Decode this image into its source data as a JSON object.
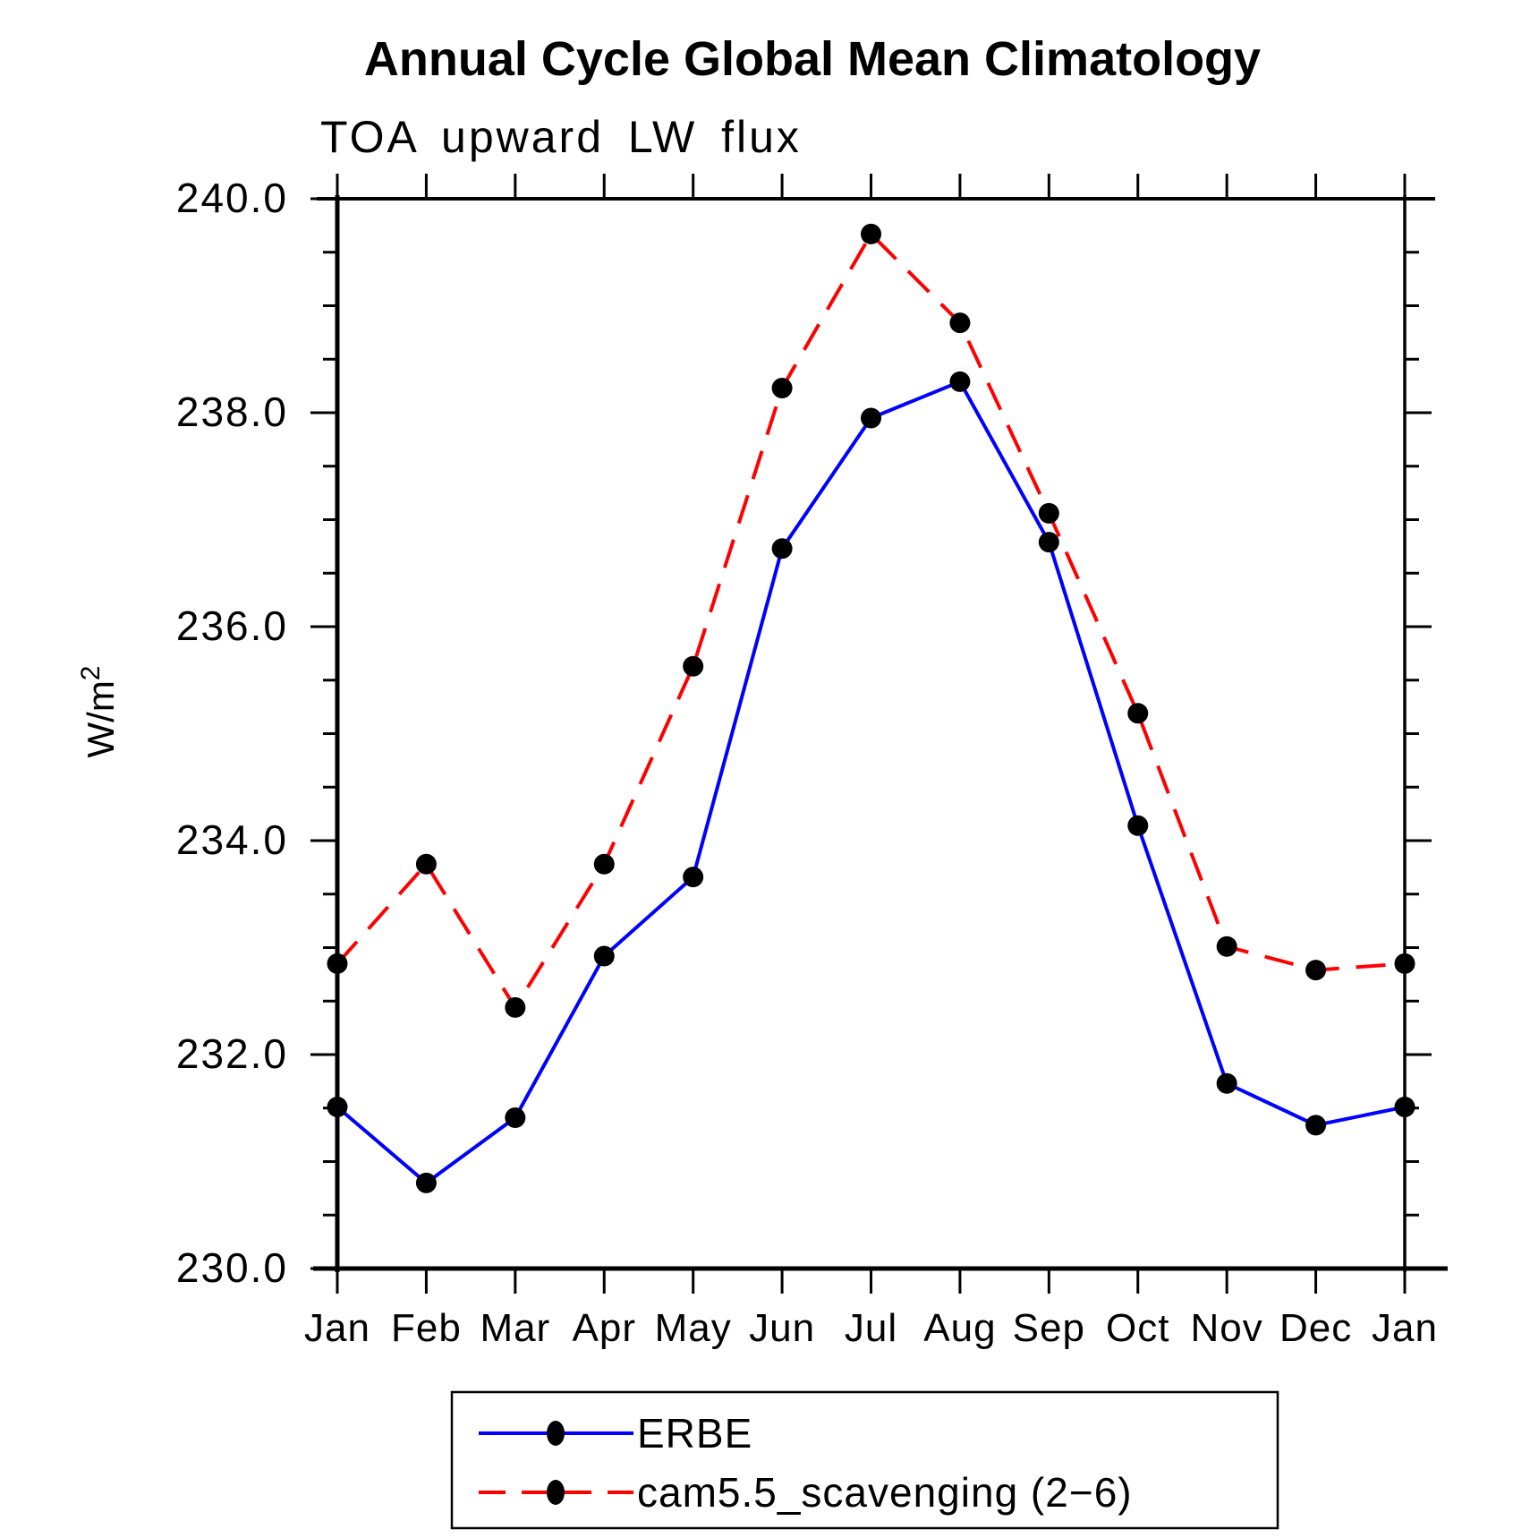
{
  "page": {
    "background": "#ffffff"
  },
  "header": {
    "title": "Annual Cycle Global Mean Climatology",
    "subtitle": "TOA upward LW flux"
  },
  "y_axis": {
    "label": "W/m²",
    "label_base": "W/m",
    "label_sup": "2",
    "tick_labels": [
      "240.0",
      "238.0",
      "236.0",
      "234.0",
      "232.0",
      "230.0"
    ]
  },
  "x_axis": {
    "labels": [
      "Jan",
      "Feb",
      "Mar",
      "Apr",
      "May",
      "Jun",
      "Jul",
      "Aug",
      "Sep",
      "Oct",
      "Nov",
      "Dec",
      "Jan"
    ]
  },
  "chart_data": {
    "type": "line",
    "title": "Annual Cycle Global Mean Climatology",
    "subtitle": "TOA upward LW flux",
    "ylabel": "W/m²",
    "xlabel": "",
    "x_categories": [
      "Jan",
      "Feb",
      "Mar",
      "Apr",
      "May",
      "Jun",
      "Jul",
      "Aug",
      "Sep",
      "Oct",
      "Nov",
      "Dec",
      "Jan"
    ],
    "ylim": [
      230.0,
      240.0
    ],
    "ytick_major": [
      230.0,
      232.0,
      234.0,
      236.0,
      238.0,
      240.0
    ],
    "ytick_minor_step": 0.5,
    "grid": false,
    "legend_position": "bottom",
    "marker_color": "#000000",
    "series": [
      {
        "name": "ERBE",
        "color": "#0000ff",
        "line_style": "solid",
        "marker": "filled-circle",
        "values": [
          231.51,
          230.8,
          231.41,
          232.92,
          233.66,
          236.73,
          237.95,
          238.29,
          236.79,
          234.14,
          231.73,
          231.34,
          231.51
        ]
      },
      {
        "name": "cam5.5_scavenging (2−6)",
        "color": "#ff0000",
        "line_style": "dashed",
        "marker": "filled-circle",
        "values": [
          232.85,
          233.78,
          232.44,
          233.78,
          235.63,
          238.23,
          239.67,
          238.84,
          237.06,
          235.19,
          233.01,
          232.79,
          232.85
        ]
      }
    ]
  }
}
